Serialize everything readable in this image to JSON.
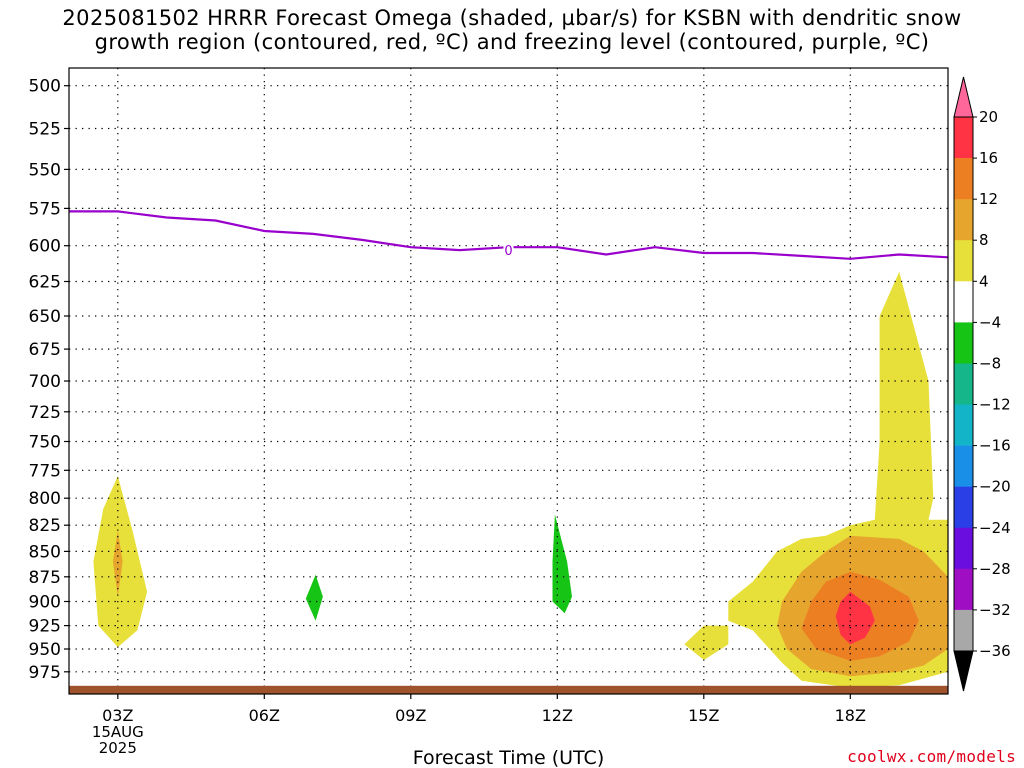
{
  "title": {
    "line1": "2025081502 HRRR Forecast Omega (shaded, µbar/s) for KSBN with dendritic snow",
    "line2": "growth region (contoured, red, ºC) and freezing level (contoured, purple, ºC)"
  },
  "credit": "coolwx.com/models",
  "chart_data": {
    "type": "heatmap",
    "xlabel": "Forecast Time (UTC)",
    "x_range_hours": [
      2,
      20
    ],
    "x_ticks": [
      {
        "hour": 3,
        "label": "03Z",
        "sub": [
          "15AUG",
          "2025"
        ]
      },
      {
        "hour": 6,
        "label": "06Z"
      },
      {
        "hour": 9,
        "label": "09Z"
      },
      {
        "hour": 12,
        "label": "12Z"
      },
      {
        "hour": 15,
        "label": "15Z"
      },
      {
        "hour": 18,
        "label": "18Z"
      }
    ],
    "y_pressure_levels": [
      500,
      525,
      550,
      575,
      600,
      625,
      650,
      675,
      700,
      725,
      750,
      775,
      800,
      825,
      850,
      875,
      900,
      925,
      950,
      975
    ],
    "y_range_hpa": [
      490,
      1000
    ],
    "y_scale": "log-pressure",
    "grid": true,
    "freezing_level": {
      "label": "0",
      "color": "#9900cc",
      "points": [
        [
          2,
          577
        ],
        [
          3,
          577
        ],
        [
          4,
          581
        ],
        [
          5,
          583
        ],
        [
          6,
          590
        ],
        [
          7,
          592
        ],
        [
          8,
          596
        ],
        [
          9,
          601
        ],
        [
          10,
          603
        ],
        [
          11,
          601
        ],
        [
          12,
          601
        ],
        [
          13,
          606
        ],
        [
          14,
          601
        ],
        [
          15,
          605
        ],
        [
          16,
          605
        ],
        [
          17,
          607
        ],
        [
          18,
          609
        ],
        [
          19,
          606
        ],
        [
          20,
          608
        ]
      ]
    },
    "ground": {
      "color": "#a0522d",
      "pressure_hpa": 993
    },
    "colorbar": {
      "levels": [
        {
          "value": 20,
          "color": "#ff6699"
        },
        {
          "value": 16,
          "color": "#ff3344"
        },
        {
          "value": 12,
          "color": "#ec7f22"
        },
        {
          "value": 8,
          "color": "#e6a62e"
        },
        {
          "value": 4,
          "color": "#e8e03a"
        },
        {
          "value": -4,
          "color": "#ffffff"
        },
        {
          "value": -8,
          "color": "#16c416"
        },
        {
          "value": -12,
          "color": "#14b68a"
        },
        {
          "value": -16,
          "color": "#14b4c8"
        },
        {
          "value": -20,
          "color": "#1a8fe8"
        },
        {
          "value": -24,
          "color": "#2a3fe6"
        },
        {
          "value": -28,
          "color": "#6a0ee0"
        },
        {
          "value": -32,
          "color": "#a00ec4"
        },
        {
          "value": -36,
          "color": "#a8a8a8"
        }
      ],
      "below_color": "#000000"
    },
    "omega_regions": [
      {
        "value_range": [
          4,
          8
        ],
        "color": "#e8e03a",
        "points": [
          [
            3.0,
            780
          ],
          [
            3.3,
            830
          ],
          [
            3.6,
            890
          ],
          [
            3.4,
            930
          ],
          [
            3.0,
            948
          ],
          [
            2.6,
            925
          ],
          [
            2.5,
            860
          ],
          [
            2.7,
            810
          ]
        ]
      },
      {
        "value_range": [
          8,
          12
        ],
        "color": "#e6a62e",
        "points": [
          [
            3.0,
            830
          ],
          [
            3.1,
            860
          ],
          [
            3.0,
            895
          ],
          [
            2.9,
            860
          ]
        ]
      },
      {
        "value_range": [
          -8,
          -4
        ],
        "color": "#16c416",
        "points": [
          [
            7.05,
            873
          ],
          [
            7.2,
            895
          ],
          [
            7.05,
            920
          ],
          [
            6.85,
            897
          ]
        ]
      },
      {
        "value_range": [
          -8,
          -4
        ],
        "color": "#16c416",
        "points": [
          [
            11.95,
            815
          ],
          [
            12.2,
            860
          ],
          [
            12.3,
            895
          ],
          [
            12.15,
            912
          ],
          [
            11.9,
            900
          ],
          [
            11.9,
            860
          ]
        ]
      },
      {
        "value_range": [
          4,
          8
        ],
        "color": "#e8e03a",
        "points": [
          [
            15.0,
            925
          ],
          [
            15.5,
            925
          ],
          [
            15.5,
            945
          ],
          [
            15.0,
            962
          ],
          [
            14.6,
            945
          ]
        ]
      },
      {
        "value_range": [
          4,
          8
        ],
        "color": "#e8e03a",
        "points": [
          [
            19.0,
            618
          ],
          [
            19.6,
            700
          ],
          [
            19.7,
            800
          ],
          [
            19.6,
            820
          ],
          [
            20.0,
            820
          ],
          [
            20.0,
            975
          ],
          [
            19.0,
            990
          ],
          [
            18.0,
            993
          ],
          [
            17.0,
            985
          ],
          [
            16.6,
            965
          ],
          [
            16.0,
            930
          ],
          [
            15.5,
            920
          ],
          [
            15.5,
            900
          ],
          [
            16.0,
            880
          ],
          [
            16.5,
            850
          ],
          [
            17.0,
            838
          ],
          [
            17.5,
            835
          ],
          [
            18.0,
            825
          ],
          [
            18.5,
            820
          ],
          [
            18.6,
            750
          ],
          [
            18.6,
            650
          ]
        ]
      },
      {
        "value_range": [
          8,
          12
        ],
        "color": "#e6a62e",
        "points": [
          [
            18.0,
            835
          ],
          [
            19.0,
            838
          ],
          [
            19.5,
            850
          ],
          [
            20.0,
            875
          ],
          [
            20.0,
            950
          ],
          [
            19.5,
            968
          ],
          [
            19.0,
            975
          ],
          [
            18.0,
            980
          ],
          [
            17.2,
            972
          ],
          [
            16.7,
            950
          ],
          [
            16.5,
            925
          ],
          [
            16.6,
            900
          ],
          [
            17.0,
            870
          ],
          [
            17.5,
            850
          ]
        ]
      },
      {
        "value_range": [
          12,
          16
        ],
        "color": "#ec7f22",
        "points": [
          [
            18.0,
            870
          ],
          [
            18.6,
            878
          ],
          [
            19.2,
            895
          ],
          [
            19.4,
            920
          ],
          [
            19.2,
            942
          ],
          [
            18.6,
            958
          ],
          [
            18.0,
            963
          ],
          [
            17.3,
            950
          ],
          [
            17.0,
            928
          ],
          [
            17.2,
            900
          ],
          [
            17.5,
            880
          ]
        ]
      },
      {
        "value_range": [
          16,
          20
        ],
        "color": "#ff3344",
        "points": [
          [
            18.0,
            890
          ],
          [
            18.4,
            905
          ],
          [
            18.5,
            920
          ],
          [
            18.3,
            938
          ],
          [
            18.0,
            945
          ],
          [
            17.8,
            935
          ],
          [
            17.7,
            915
          ],
          [
            17.8,
            900
          ]
        ]
      }
    ]
  }
}
